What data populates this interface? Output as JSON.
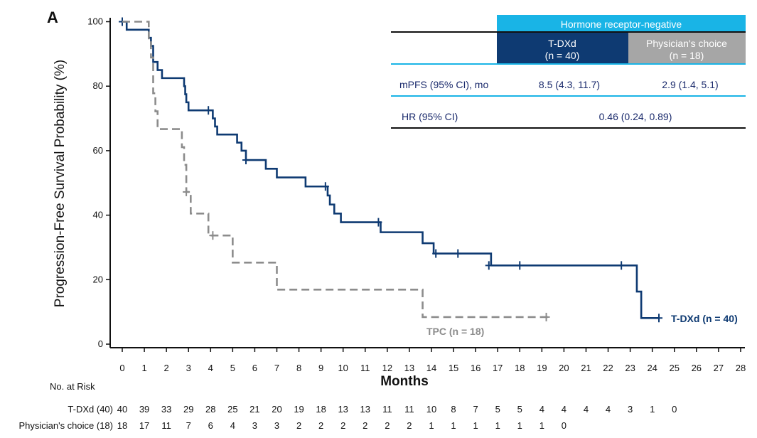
{
  "chart_data": {
    "type": "line",
    "panel_label": "A",
    "xlabel": "Months",
    "ylabel": "Progression-Free Survival Probability (%)",
    "xlim": [
      0,
      28
    ],
    "ylim": [
      0,
      100
    ],
    "x_ticks": [
      0,
      1,
      2,
      3,
      4,
      5,
      6,
      7,
      8,
      9,
      10,
      11,
      12,
      13,
      14,
      15,
      16,
      17,
      18,
      19,
      20,
      21,
      22,
      23,
      24,
      25,
      26,
      27,
      28
    ],
    "y_ticks": [
      0,
      20,
      40,
      60,
      80,
      100
    ],
    "grid": false,
    "series": [
      {
        "name": "T-DXd (n = 40)",
        "color": "#0e3a72",
        "style": "solid",
        "steps": [
          [
            0,
            100
          ],
          [
            0.2,
            97.5
          ],
          [
            1.2,
            95
          ],
          [
            1.3,
            92.5
          ],
          [
            1.4,
            87.5
          ],
          [
            1.6,
            85
          ],
          [
            1.8,
            82.5
          ],
          [
            2.8,
            80
          ],
          [
            2.85,
            77.5
          ],
          [
            2.9,
            75
          ],
          [
            3.0,
            72.5
          ],
          [
            4.1,
            70
          ],
          [
            4.2,
            67.5
          ],
          [
            4.3,
            65
          ],
          [
            5.2,
            62.5
          ],
          [
            5.4,
            60
          ],
          [
            5.6,
            57.1
          ],
          [
            6.5,
            54.4
          ],
          [
            7.0,
            51.7
          ],
          [
            8.3,
            48.9
          ],
          [
            9.3,
            46.1
          ],
          [
            9.4,
            43.3
          ],
          [
            9.6,
            40.5
          ],
          [
            9.9,
            37.8
          ],
          [
            11.7,
            34.7
          ],
          [
            13.6,
            31.3
          ],
          [
            14.1,
            28.1
          ],
          [
            16.7,
            24.4
          ],
          [
            23.3,
            16.3
          ],
          [
            23.5,
            8.1
          ],
          [
            24.3,
            8.1
          ]
        ],
        "censor": [
          [
            0,
            100
          ],
          [
            3.9,
            72.5
          ],
          [
            5.6,
            57.1
          ],
          [
            9.2,
            48.9
          ],
          [
            11.6,
            37.8
          ],
          [
            14.2,
            28.1
          ],
          [
            15.2,
            28.1
          ],
          [
            16.6,
            24.4
          ],
          [
            18.0,
            24.4
          ],
          [
            22.6,
            24.4
          ],
          [
            24.3,
            8.1
          ]
        ],
        "label": "T-DXd (n = 40)"
      },
      {
        "name": "TPC (n = 18)",
        "color": "#8c8c8c",
        "style": "dashed",
        "steps": [
          [
            0,
            100
          ],
          [
            1.2,
            94.4
          ],
          [
            1.3,
            88.9
          ],
          [
            1.4,
            77.8
          ],
          [
            1.5,
            72.2
          ],
          [
            1.6,
            66.7
          ],
          [
            2.7,
            61.1
          ],
          [
            2.8,
            55.6
          ],
          [
            2.9,
            47.2
          ],
          [
            3.1,
            40.5
          ],
          [
            3.9,
            33.7
          ],
          [
            5.0,
            25.3
          ],
          [
            7.0,
            16.9
          ],
          [
            13.6,
            8.4
          ],
          [
            19.3,
            8.4
          ]
        ],
        "censor": [
          [
            2.9,
            47.2
          ],
          [
            4.1,
            33.7
          ],
          [
            19.2,
            8.4
          ]
        ],
        "label": "TPC (n = 18)"
      }
    ],
    "at_risk": {
      "title": "No. at Risk",
      "rows": [
        {
          "label": "T-DXd (40)",
          "values": [
            "40",
            "39",
            "33",
            "29",
            "28",
            "25",
            "21",
            "20",
            "19",
            "18",
            "13",
            "13",
            "11",
            "11",
            "10",
            "8",
            "7",
            "5",
            "5",
            "4",
            "4",
            "4",
            "4",
            "3",
            "1",
            "0"
          ]
        },
        {
          "label": "Physician's choice (18)",
          "values": [
            "18",
            "17",
            "11",
            "7",
            "6",
            "4",
            "3",
            "3",
            "2",
            "2",
            "2",
            "2",
            "2",
            "2",
            "1",
            "1",
            "1",
            "1",
            "1",
            "1",
            "0"
          ]
        }
      ]
    },
    "table": {
      "banner": "Hormone receptor-negative",
      "col1": "T-DXd",
      "col1_n": "(n = 40)",
      "col2": "Physician's choice",
      "col2_n": "(n = 18)",
      "rows": [
        {
          "label": "mPFS (95% CI), mo",
          "v1": "8.5 (4.3, 11.7)",
          "v2": "2.9 (1.4, 5.1)"
        },
        {
          "label": "HR (95% CI)",
          "v": "0.46 (0.24, 0.89)"
        }
      ]
    },
    "colors": {
      "banner": "#19b4e6",
      "tdxd": "#0e3a72",
      "tpc": "#a6a6a6",
      "table_text": "#1a2a6c"
    }
  }
}
